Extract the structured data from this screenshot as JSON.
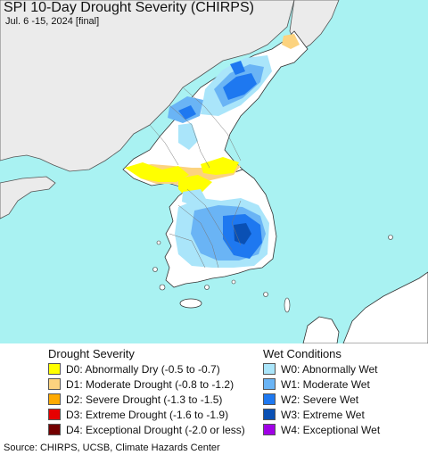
{
  "header": {
    "title": "SPI 10-Day Drought Severity (CHIRPS)",
    "subtitle": "Jul. 6 -15, 2024 [final]"
  },
  "colors": {
    "ocean": "#a9f2f2",
    "land_outside": "#ebebeb",
    "no_drought": "#ffffff",
    "border": "#333333"
  },
  "legend_drought": {
    "title": "Drought Severity",
    "items": [
      {
        "label": "D0: Abnormally Dry (-0.5 to -0.7)",
        "color": "#ffff00"
      },
      {
        "label": "D1: Moderate Drought (-0.8 to -1.2)",
        "color": "#fcd37f"
      },
      {
        "label": "D2: Severe Drought (-1.3 to -1.5)",
        "color": "#ffaa00"
      },
      {
        "label": "D3: Extreme Drought (-1.6 to -1.9)",
        "color": "#e60000"
      },
      {
        "label": "D4: Exceptional Drought (-2.0 or less)",
        "color": "#730000"
      }
    ]
  },
  "legend_wet": {
    "title": "Wet Conditions",
    "items": [
      {
        "label": "W0: Abnormally Wet",
        "color": "#aae5fa"
      },
      {
        "label": "W1: Moderate Wet",
        "color": "#6ab4f5"
      },
      {
        "label": "W2: Severe Wet",
        "color": "#1e78f0"
      },
      {
        "label": "W3: Extreme Wet",
        "color": "#0a50b4"
      },
      {
        "label": "W4: Exceptional Wet",
        "color": "#a000e6"
      }
    ]
  },
  "footer": {
    "source": "Source: CHIRPS, UCSB, Climate Hazards Center"
  }
}
